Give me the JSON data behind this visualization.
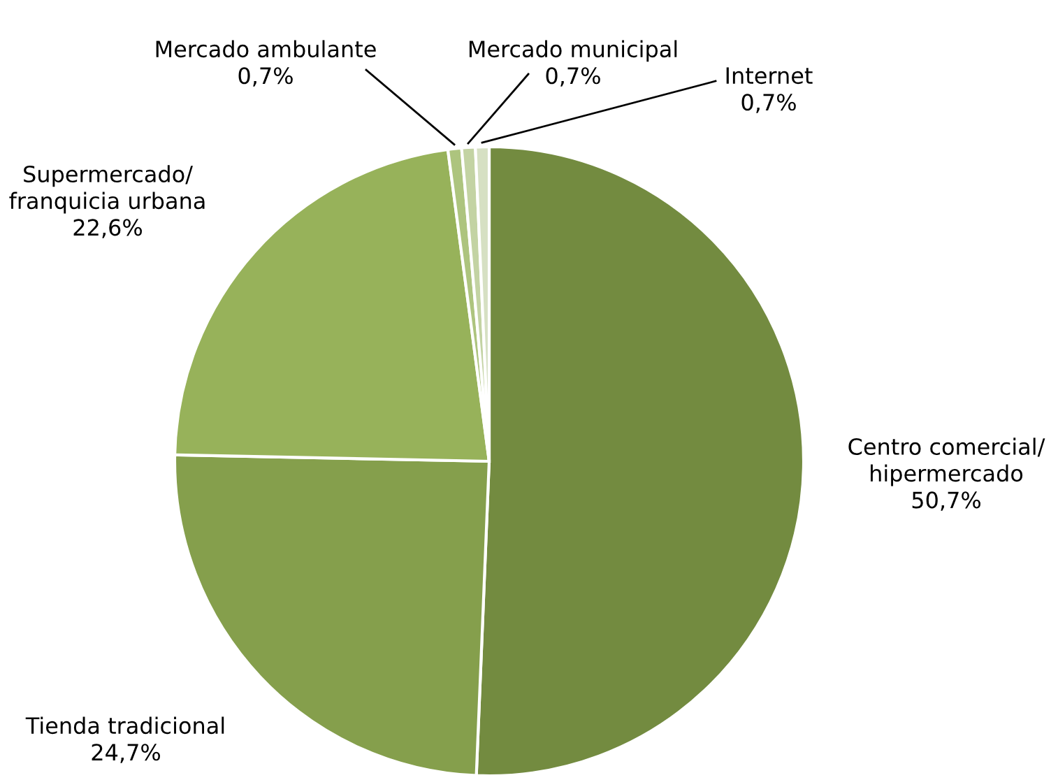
{
  "chart_data": {
    "type": "pie",
    "categories": [
      "Centro comercial/\nhipermercado",
      "Tienda tradicional",
      "Supermercado/\nfranquicia urbana",
      "Mercado ambulante",
      "Mercado municipal",
      "Internet"
    ],
    "values": [
      50.7,
      24.7,
      22.6,
      0.7,
      0.7,
      0.7
    ],
    "value_labels": [
      "50,7%",
      "24,7%",
      "22,6%",
      "0,7%",
      "0,7%",
      "0,7%"
    ],
    "colors": [
      "#738b40",
      "#859f4c",
      "#97b25a",
      "#adc47e",
      "#c3d3a3",
      "#d6e0c3"
    ]
  }
}
